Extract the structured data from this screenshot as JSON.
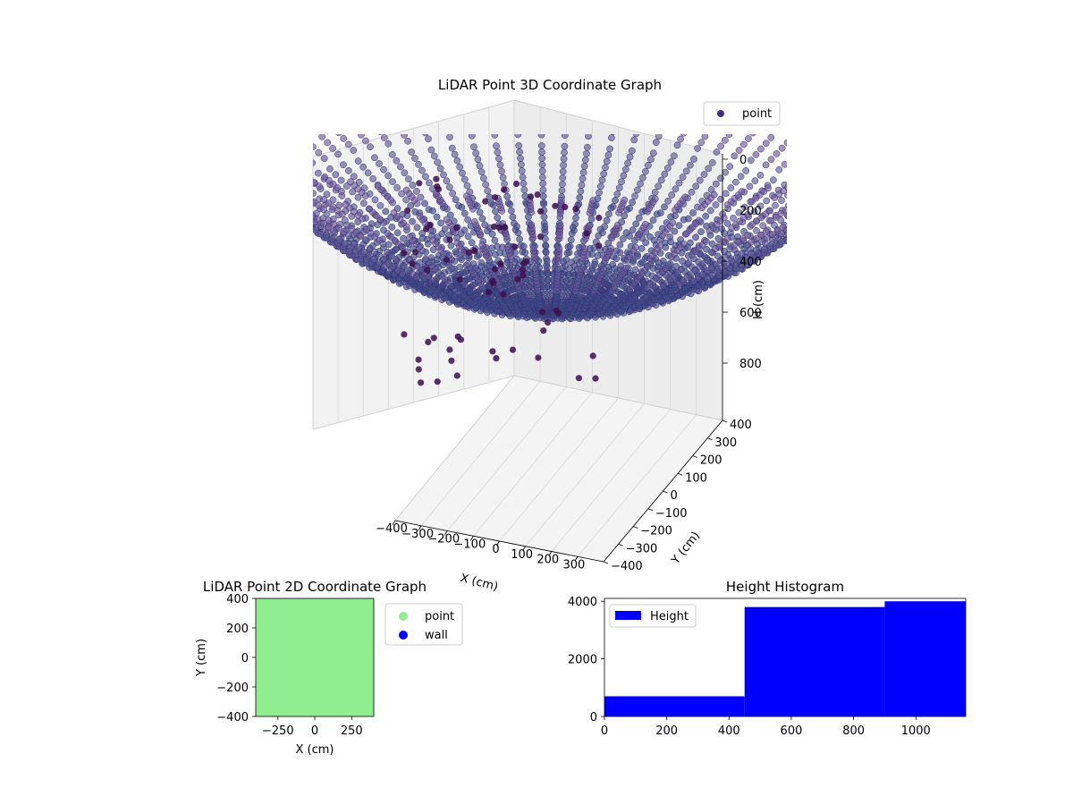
{
  "figure": {
    "panels": [
      {
        "title": "LiDAR Point 3D Coordinate Graph",
        "xlabel": "X (cm)",
        "ylabel": "Y (cm)",
        "zlabel": "H (cm)",
        "x_ticks": [
          "−400",
          "−300",
          "−200",
          "−100",
          "0",
          "100",
          "200",
          "300"
        ],
        "y_ticks": [
          "−400",
          "−300",
          "−200",
          "−100",
          "0",
          "100",
          "200",
          "300",
          "400"
        ],
        "z_ticks": [
          "0",
          "200",
          "400",
          "600",
          "800"
        ],
        "legend": [
          "point"
        ]
      },
      {
        "title": "LiDAR Point 2D Coordinate Graph",
        "xlabel": "X (cm)",
        "ylabel": "Y (cm)",
        "x_ticks": [
          "−250",
          "0",
          "250"
        ],
        "y_ticks": [
          "400",
          "200",
          "0",
          "−200",
          "−400"
        ],
        "legend": [
          "point",
          "wall"
        ]
      },
      {
        "title": "Height Histogram",
        "x_ticks": [
          "0",
          "200",
          "400",
          "600",
          "800",
          "1000"
        ],
        "y_ticks": [
          "4000",
          "2000",
          "0"
        ],
        "legend": [
          "Height"
        ]
      }
    ]
  },
  "chart_data": [
    {
      "type": "scatter",
      "title": "LiDAR Point 3D Coordinate Graph",
      "xlabel": "X (cm)",
      "ylabel": "Y (cm)",
      "zlabel": "H (cm)",
      "xlim": [
        -400,
        400
      ],
      "ylim": [
        -400,
        400
      ],
      "zlim": [
        0,
        900
      ],
      "z_inverted": true,
      "series": [
        {
          "name": "point",
          "color": "#472c7a",
          "shape": "bowl",
          "rings": [
            {
              "radius": 50,
              "depth": 880
            },
            {
              "radius": 100,
              "depth": 860
            },
            {
              "radius": 150,
              "depth": 830
            },
            {
              "radius": 200,
              "depth": 780
            },
            {
              "radius": 250,
              "depth": 720
            },
            {
              "radius": 300,
              "depth": 640
            },
            {
              "radius": 350,
              "depth": 540
            },
            {
              "radius": 400,
              "depth": 420
            },
            {
              "radius": 450,
              "depth": 290
            },
            {
              "radius": 500,
              "depth": 150
            }
          ],
          "spokes": 72
        }
      ],
      "legend": {
        "loc": "upper right"
      }
    },
    {
      "type": "scatter",
      "title": "LiDAR Point 2D Coordinate Graph",
      "xlabel": "X (cm)",
      "ylabel": "Y (cm)",
      "xlim": [
        -400,
        400
      ],
      "ylim": [
        -400,
        400
      ],
      "series": [
        {
          "name": "point",
          "color": "#90ee90",
          "coverage": "full"
        },
        {
          "name": "wall",
          "color": "#0000ff",
          "coverage": "none"
        }
      ],
      "legend": {
        "loc": "outside right"
      }
    },
    {
      "type": "bar",
      "title": "Height Histogram",
      "xlim": [
        0,
        1160
      ],
      "ylim": [
        0,
        4100
      ],
      "bins": [
        {
          "x0": 0,
          "x1": 450,
          "value": 700
        },
        {
          "x0": 450,
          "x1": 900,
          "value": 3800
        },
        {
          "x0": 900,
          "x1": 1160,
          "value": 4000
        }
      ],
      "series": [
        {
          "name": "Height",
          "color": "#0000ff"
        }
      ],
      "legend": {
        "loc": "upper left"
      }
    }
  ]
}
